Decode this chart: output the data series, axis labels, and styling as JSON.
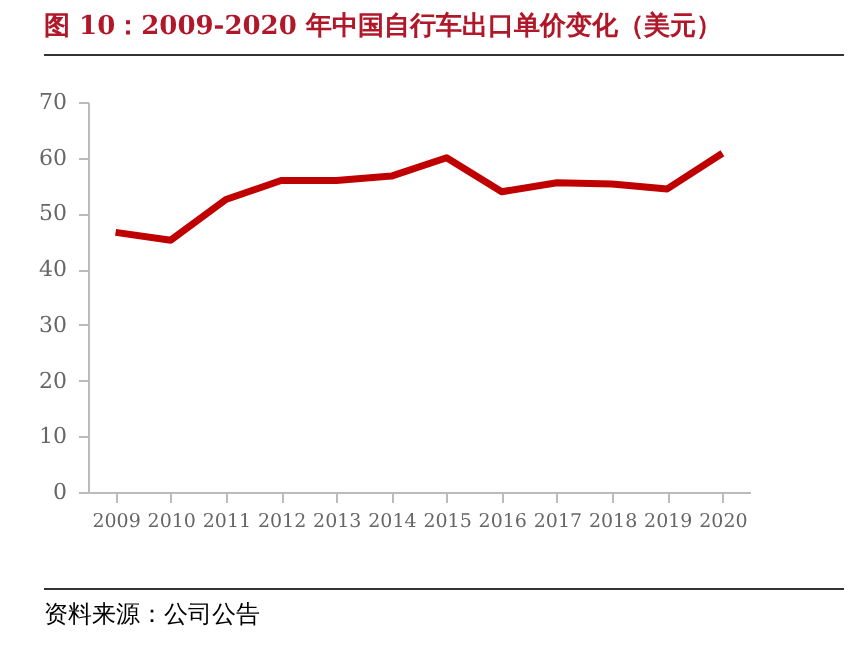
{
  "chart_data": {
    "type": "line",
    "title": "图 10：2009-2020 年中国自行车出口单价变化（美元）",
    "categories": [
      "2009",
      "2010",
      "2011",
      "2012",
      "2013",
      "2014",
      "2015",
      "2016",
      "2017",
      "2018",
      "2019",
      "2020"
    ],
    "series": [
      {
        "color": "#c00000",
        "values": [
          46.6,
          45.2,
          52.5,
          55.9,
          55.9,
          56.7,
          60.0,
          53.9,
          55.5,
          55.3,
          54.4,
          60.8
        ]
      }
    ],
    "ylim": [
      0,
      70
    ],
    "yticks": [
      0,
      10,
      20,
      30,
      40,
      50,
      60,
      70
    ],
    "grid": false,
    "legend": false,
    "marker": "none",
    "line_style": "solid",
    "annotations": [
      "资料来源：公司公告"
    ]
  }
}
